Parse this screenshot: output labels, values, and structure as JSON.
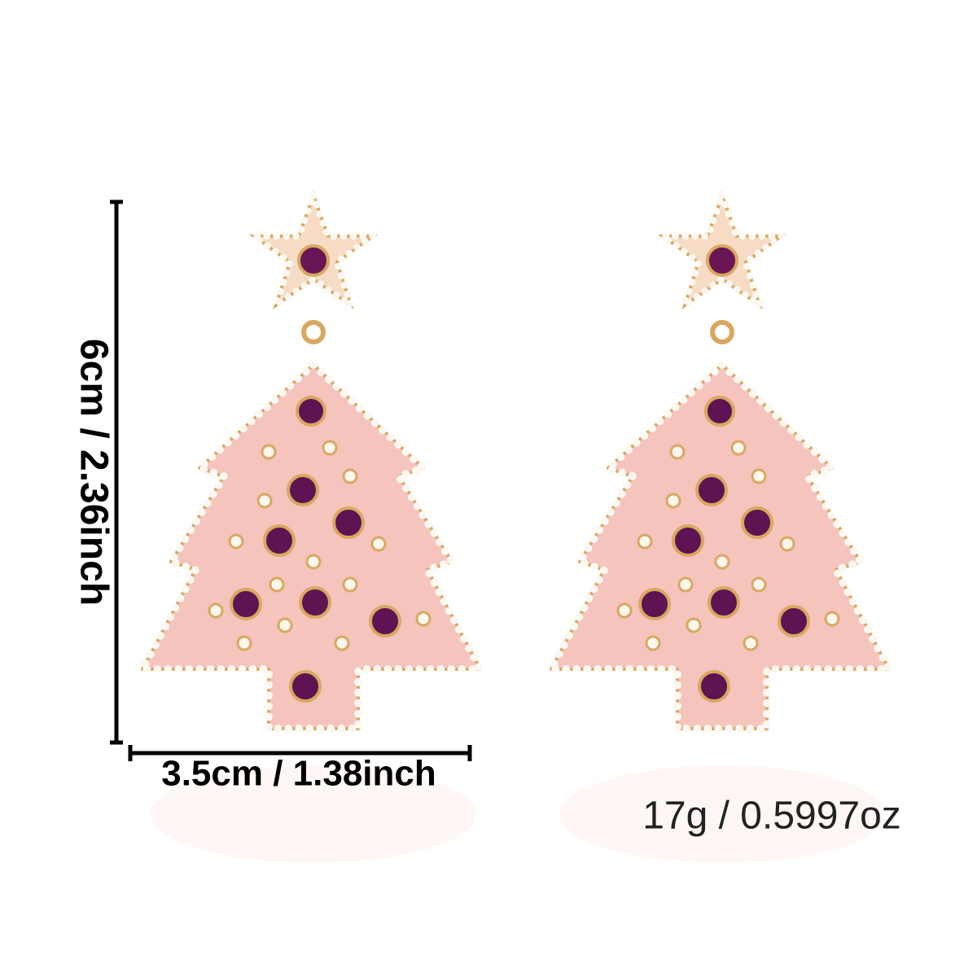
{
  "dimensions": {
    "height": "6cm / 2.36inch",
    "width": "3.5cm / 1.38inch",
    "weight": "17g / 0.5997oz"
  }
}
